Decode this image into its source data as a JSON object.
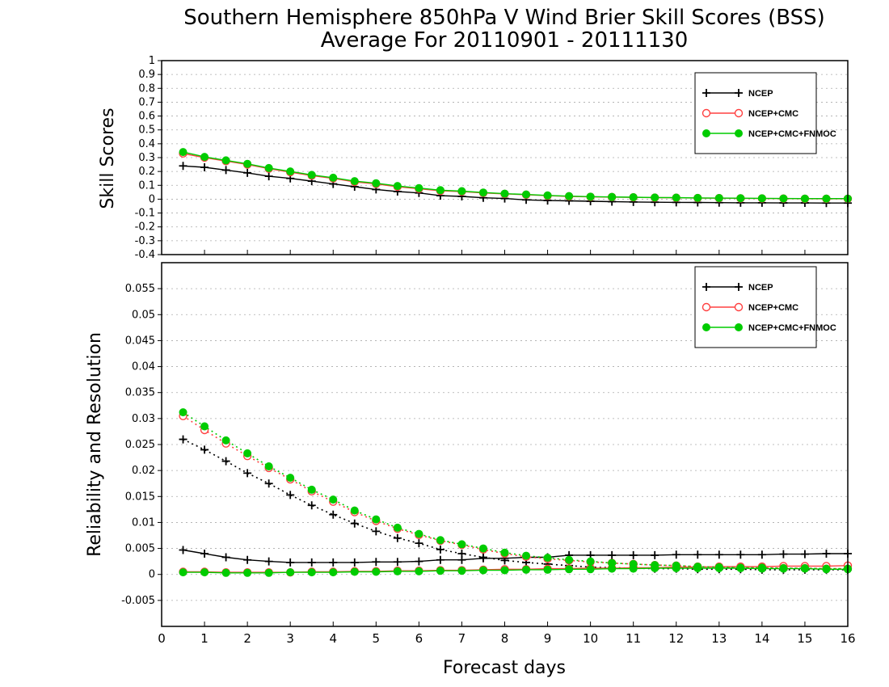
{
  "chart_data": [
    {
      "type": "line",
      "title": "Southern Hemisphere 850hPa V Wind Brier Skill Scores (BSS)",
      "subtitle": "Average For 20110901 - 20111130",
      "xlabel": "",
      "ylabel": "Skill Scores",
      "xlim": [
        0,
        16
      ],
      "ylim": [
        -0.4,
        1
      ],
      "yticks": [
        -0.4,
        -0.3,
        -0.2,
        -0.1,
        0,
        0.1,
        0.2,
        0.3,
        0.4,
        0.5,
        0.6,
        0.7,
        0.8,
        0.9,
        1
      ],
      "ytick_labels": [
        "-0.4",
        "-0.3",
        "-0.2",
        "-0.1",
        "0",
        "0.1",
        "0.2",
        "0.3",
        "0.4",
        "0.5",
        "0.6",
        "0.7",
        "0.8",
        "0.9",
        "1"
      ],
      "grid": true,
      "legend_position": "top-right",
      "legend": [
        "NCEP",
        "NCEP+CMC",
        "NCEP+CMC+FNMOC"
      ],
      "x": [
        0.5,
        1,
        1.5,
        2,
        2.5,
        3,
        3.5,
        4,
        4.5,
        5,
        5.5,
        6,
        6.5,
        7,
        7.5,
        8,
        8.5,
        9,
        9.5,
        10,
        10.5,
        11,
        11.5,
        12,
        12.5,
        13,
        13.5,
        14,
        14.5,
        15,
        15.5,
        16
      ],
      "series": [
        {
          "name": "NCEP",
          "color": "#000000",
          "marker": "plus",
          "style": "solid",
          "values": [
            0.24,
            0.23,
            0.21,
            0.19,
            0.165,
            0.15,
            0.13,
            0.11,
            0.09,
            0.07,
            0.055,
            0.045,
            0.025,
            0.02,
            0.01,
            0.005,
            -0.005,
            -0.01,
            -0.012,
            -0.015,
            -0.018,
            -0.02,
            -0.022,
            -0.023,
            -0.024,
            -0.025,
            -0.026,
            -0.026,
            -0.027,
            -0.027,
            -0.028,
            -0.028
          ]
        },
        {
          "name": "NCEP+CMC",
          "color": "#ff4040",
          "marker": "open-circle",
          "style": "solid",
          "values": [
            0.33,
            0.3,
            0.275,
            0.25,
            0.22,
            0.195,
            0.17,
            0.15,
            0.125,
            0.11,
            0.09,
            0.075,
            0.06,
            0.055,
            0.045,
            0.038,
            0.032,
            0.025,
            0.02,
            0.017,
            0.015,
            0.013,
            0.011,
            0.01,
            0.008,
            0.007,
            0.006,
            0.005,
            0.004,
            0.003,
            0.003,
            0.003
          ]
        },
        {
          "name": "NCEP+CMC+FNMOC",
          "color": "#00cc00",
          "marker": "filled-circle",
          "style": "solid",
          "values": [
            0.34,
            0.305,
            0.28,
            0.255,
            0.225,
            0.2,
            0.175,
            0.155,
            0.13,
            0.115,
            0.095,
            0.08,
            0.065,
            0.058,
            0.048,
            0.04,
            0.034,
            0.027,
            0.022,
            0.018,
            0.016,
            0.014,
            0.012,
            0.011,
            0.009,
            0.008,
            0.007,
            0.006,
            0.005,
            0.004,
            0.004,
            0.004
          ]
        }
      ]
    },
    {
      "type": "line",
      "xlabel": "Forecast days",
      "ylabel": "Reliability and Resolution",
      "xlim": [
        0,
        16
      ],
      "ylim": [
        -0.01,
        0.06
      ],
      "xticks": [
        0,
        1,
        2,
        3,
        4,
        5,
        6,
        7,
        8,
        9,
        10,
        11,
        12,
        13,
        14,
        15,
        16
      ],
      "xtick_labels": [
        "0",
        "1",
        "2",
        "3",
        "4",
        "5",
        "6",
        "7",
        "8",
        "9",
        "10",
        "11",
        "12",
        "13",
        "14",
        "15",
        "16"
      ],
      "yticks": [
        -0.005,
        0,
        0.005,
        0.01,
        0.015,
        0.02,
        0.025,
        0.03,
        0.035,
        0.04,
        0.045,
        0.05,
        0.055
      ],
      "ytick_labels": [
        "-0.005",
        "0",
        "0.005",
        "0.01",
        "0.015",
        "0.02",
        "0.025",
        "0.03",
        "0.035",
        "0.04",
        "0.045",
        "0.05",
        "0.055"
      ],
      "grid": true,
      "legend_position": "top-right",
      "legend": [
        "NCEP",
        "NCEP+CMC",
        "NCEP+CMC+FNMOC"
      ],
      "x": [
        0.5,
        1,
        1.5,
        2,
        2.5,
        3,
        3.5,
        4,
        4.5,
        5,
        5.5,
        6,
        6.5,
        7,
        7.5,
        8,
        8.5,
        9,
        9.5,
        10,
        10.5,
        11,
        11.5,
        12,
        12.5,
        13,
        13.5,
        14,
        14.5,
        15,
        15.5,
        16
      ],
      "series": [
        {
          "name": "NCEP",
          "part": "reliability",
          "color": "#000000",
          "marker": "plus",
          "style": "solid",
          "values": [
            0.0047,
            0.004,
            0.0033,
            0.0028,
            0.0025,
            0.0023,
            0.0023,
            0.0023,
            0.0023,
            0.0024,
            0.0024,
            0.0025,
            0.0028,
            0.0028,
            0.0031,
            0.0031,
            0.0033,
            0.0033,
            0.0037,
            0.0037,
            0.0037,
            0.0037,
            0.0037,
            0.0038,
            0.0038,
            0.0038,
            0.0038,
            0.0038,
            0.0039,
            0.0039,
            0.004,
            0.004
          ]
        },
        {
          "name": "NCEP",
          "part": "resolution",
          "color": "#000000",
          "marker": "plus",
          "style": "dotted",
          "values": [
            0.026,
            0.024,
            0.0218,
            0.0195,
            0.0175,
            0.0153,
            0.0133,
            0.0115,
            0.0098,
            0.0083,
            0.007,
            0.006,
            0.0048,
            0.004,
            0.0033,
            0.0027,
            0.0023,
            0.002,
            0.0017,
            0.0014,
            0.0013,
            0.0012,
            0.0011,
            0.0011,
            0.001,
            0.001,
            0.001,
            0.0009,
            0.0009,
            0.0009,
            0.0009,
            0.0009
          ]
        },
        {
          "name": "NCEP+CMC",
          "part": "reliability",
          "color": "#ff4040",
          "marker": "open-circle",
          "style": "solid",
          "values": [
            0.0005,
            0.0005,
            0.0004,
            0.0004,
            0.0004,
            0.0004,
            0.0005,
            0.0005,
            0.0006,
            0.0006,
            0.0007,
            0.0007,
            0.0008,
            0.0008,
            0.0009,
            0.001,
            0.001,
            0.0011,
            0.0011,
            0.0012,
            0.0012,
            0.0013,
            0.0013,
            0.0014,
            0.0014,
            0.0015,
            0.0015,
            0.0015,
            0.0016,
            0.0016,
            0.0016,
            0.0017
          ]
        },
        {
          "name": "NCEP+CMC",
          "part": "resolution",
          "color": "#ff4040",
          "marker": "open-circle",
          "style": "dotted",
          "values": [
            0.0305,
            0.0278,
            0.0252,
            0.0228,
            0.0205,
            0.0183,
            0.016,
            0.014,
            0.012,
            0.0103,
            0.0088,
            0.0076,
            0.0065,
            0.0057,
            0.0048,
            0.004,
            0.0034,
            0.003,
            0.0027,
            0.0024,
            0.0022,
            0.002,
            0.0018,
            0.0017,
            0.0015,
            0.0014,
            0.0013,
            0.0013,
            0.0012,
            0.0012,
            0.0011,
            0.0011
          ]
        },
        {
          "name": "NCEP+CMC+FNMOC",
          "part": "reliability",
          "color": "#00cc00",
          "marker": "filled-circle",
          "style": "solid",
          "values": [
            0.0004,
            0.0004,
            0.0003,
            0.0003,
            0.0003,
            0.0004,
            0.0004,
            0.0004,
            0.0005,
            0.0005,
            0.0006,
            0.0006,
            0.0007,
            0.0007,
            0.0008,
            0.0008,
            0.0009,
            0.0009,
            0.001,
            0.001,
            0.0011,
            0.0011,
            0.0012,
            0.0012,
            0.0012,
            0.0012,
            0.0012,
            0.0011,
            0.0011,
            0.0011,
            0.001,
            0.001
          ]
        },
        {
          "name": "NCEP+CMC+FNMOC",
          "part": "resolution",
          "color": "#00cc00",
          "marker": "filled-circle",
          "style": "dotted",
          "values": [
            0.0312,
            0.0285,
            0.0258,
            0.0233,
            0.0208,
            0.0186,
            0.0163,
            0.0144,
            0.0123,
            0.0106,
            0.009,
            0.0078,
            0.0066,
            0.0058,
            0.005,
            0.0042,
            0.0036,
            0.0032,
            0.0028,
            0.0025,
            0.0022,
            0.002,
            0.0018,
            0.0017,
            0.0015,
            0.0014,
            0.0013,
            0.0013,
            0.0012,
            0.0012,
            0.0011,
            0.0011
          ]
        }
      ]
    }
  ]
}
